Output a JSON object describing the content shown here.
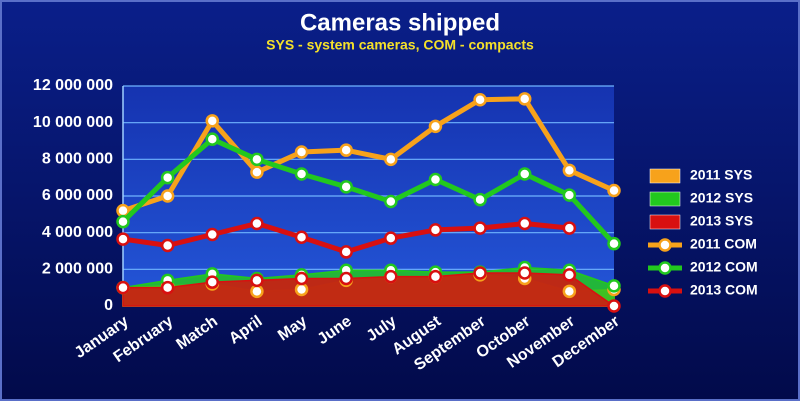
{
  "chart_data": {
    "type": "line",
    "title": "Cameras shipped",
    "subtitle": "SYS - system cameras, COM - compacts",
    "categories": [
      "January",
      "February",
      "Match",
      "April",
      "May",
      "June",
      "July",
      "August",
      "September",
      "October",
      "November",
      "December"
    ],
    "ylim": [
      0,
      12000000
    ],
    "yticks": [
      0,
      {
        "value": 2000000,
        "label": "2 000 000"
      },
      {
        "value": 4000000,
        "label": "4 000 000"
      },
      {
        "value": 6000000,
        "label": "6 000 000"
      },
      {
        "value": 8000000,
        "label": "8 000 000"
      },
      {
        "value": 10000000,
        "label": "10 000 000"
      },
      {
        "value": 12000000,
        "label": "12 000 000"
      }
    ],
    "grid": true,
    "legend": "right",
    "series": [
      {
        "name": "2011 SYS",
        "style": "area",
        "color": "#f7a21b",
        "values": [
          1000000,
          1100000,
          1200000,
          800000,
          900000,
          1400000,
          1600000,
          1600000,
          1700000,
          1500000,
          800000,
          900000
        ]
      },
      {
        "name": "2012 SYS",
        "style": "area",
        "color": "#22c81e",
        "values": [
          1000000,
          1400000,
          1750000,
          1500000,
          1700000,
          1950000,
          1950000,
          1850000,
          1850000,
          2100000,
          1950000,
          1100000
        ]
      },
      {
        "name": "2013 SYS",
        "style": "area",
        "color": "#d81010",
        "values": [
          1000000,
          1000000,
          1300000,
          1400000,
          1500000,
          1500000,
          1600000,
          1600000,
          1800000,
          1800000,
          1700000,
          0
        ]
      },
      {
        "name": "2011 COM",
        "style": "line",
        "color": "#f7a21b",
        "values": [
          5200000,
          6000000,
          10100000,
          7300000,
          8400000,
          8500000,
          8000000,
          9800000,
          11250000,
          11300000,
          7400000,
          6300000
        ]
      },
      {
        "name": "2012 COM",
        "style": "line",
        "color": "#22c81e",
        "values": [
          4600000,
          7000000,
          9100000,
          8000000,
          7200000,
          6500000,
          5700000,
          6900000,
          5800000,
          7200000,
          6050000,
          3400000
        ]
      },
      {
        "name": "2013 COM",
        "style": "line",
        "color": "#d81010",
        "values": [
          3650000,
          3300000,
          3900000,
          4500000,
          3750000,
          2950000,
          3700000,
          4150000,
          4250000,
          4500000,
          4250000,
          null
        ]
      }
    ]
  }
}
